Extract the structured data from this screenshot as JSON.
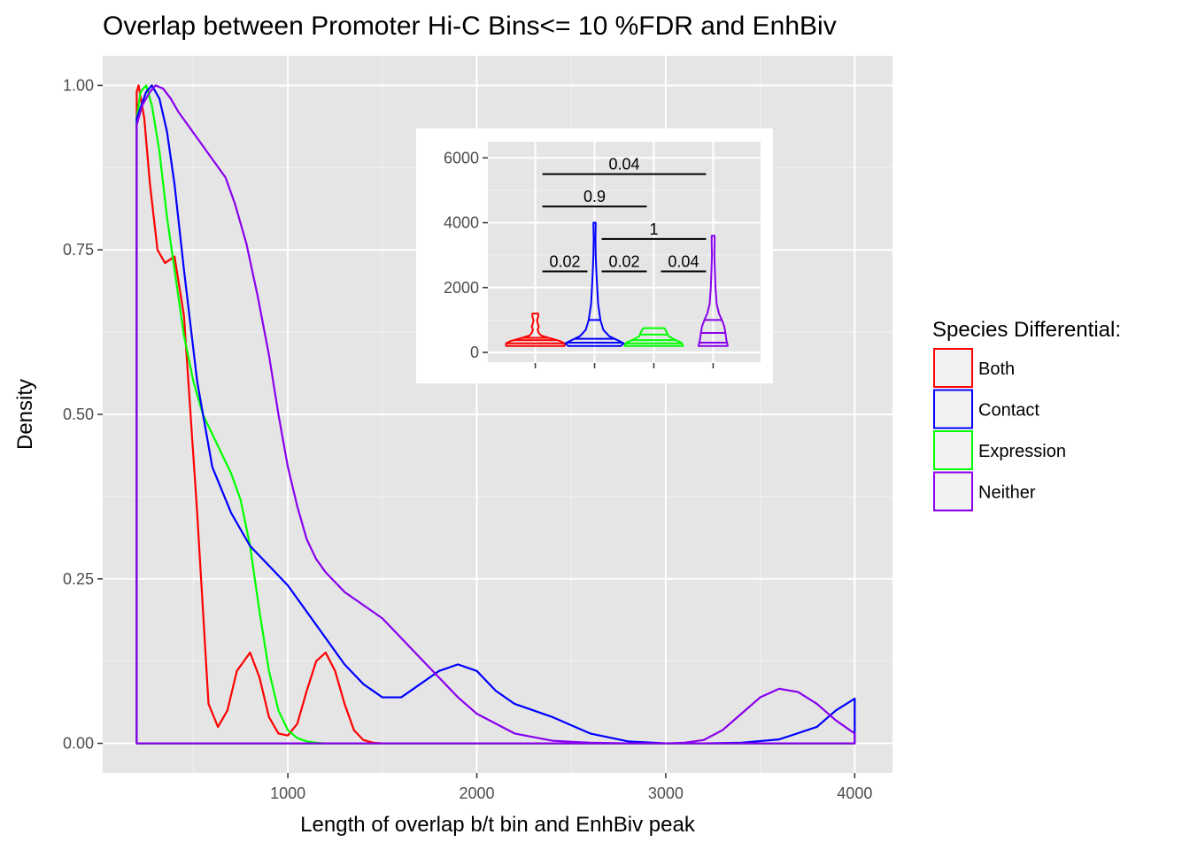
{
  "chart_data": [
    {
      "type": "line",
      "subtype": "density",
      "title": "Overlap between Promoter Hi-C Bins<= 10 %FDR and EnhBiv",
      "xlabel": "Length of overlap b/t bin and EnhBiv peak",
      "ylabel": "Density",
      "xlim": [
        20,
        4200
      ],
      "ylim": [
        -0.045,
        1.045
      ],
      "xticks": [
        1000,
        2000,
        3000,
        4000
      ],
      "yticks": [
        0,
        0.25,
        0.5,
        0.75,
        1.0
      ],
      "yticklabels": [
        "0.00",
        "0.25",
        "0.50",
        "0.75",
        "1.00"
      ],
      "grid": true,
      "background": "#e5e5e5",
      "legend": {
        "title": "Species Differential:",
        "position": "right",
        "entries": [
          "Both",
          "Contact",
          "Expression",
          "Neither"
        ]
      },
      "series": [
        {
          "name": "Both",
          "color": "#ff0000",
          "x": [
            200,
            200,
            210,
            240,
            270,
            310,
            350,
            400,
            450,
            520,
            580,
            630,
            680,
            730,
            800,
            850,
            900,
            950,
            1000,
            1050,
            1100,
            1150,
            1200,
            1250,
            1300,
            1350,
            1400,
            1450,
            1500,
            4000
          ],
          "y": [
            0,
            0.99,
            1.0,
            0.95,
            0.85,
            0.75,
            0.73,
            0.74,
            0.65,
            0.35,
            0.06,
            0.025,
            0.05,
            0.11,
            0.138,
            0.1,
            0.04,
            0.015,
            0.012,
            0.03,
            0.08,
            0.125,
            0.138,
            0.11,
            0.06,
            0.02,
            0.005,
            0.001,
            0,
            0
          ]
        },
        {
          "name": "Contact",
          "color": "#0000ff",
          "x": [
            200,
            200,
            250,
            280,
            320,
            360,
            400,
            450,
            520,
            600,
            700,
            800,
            900,
            1000,
            1100,
            1200,
            1300,
            1400,
            1500,
            1600,
            1700,
            1800,
            1900,
            2000,
            2100,
            2200,
            2400,
            2600,
            2800,
            3000,
            3200,
            3400,
            3600,
            3800,
            3900,
            4000,
            4000
          ],
          "y": [
            0,
            0.95,
            0.99,
            1.0,
            0.98,
            0.93,
            0.85,
            0.72,
            0.55,
            0.42,
            0.35,
            0.3,
            0.27,
            0.24,
            0.2,
            0.16,
            0.12,
            0.09,
            0.07,
            0.07,
            0.09,
            0.11,
            0.12,
            0.11,
            0.08,
            0.06,
            0.04,
            0.015,
            0.003,
            0,
            0,
            0.001,
            0.006,
            0.025,
            0.05,
            0.068,
            0
          ]
        },
        {
          "name": "Expression",
          "color": "#00ff00",
          "x": [
            200,
            220,
            250,
            280,
            320,
            360,
            400,
            450,
            500,
            550,
            600,
            650,
            700,
            750,
            800,
            850,
            900,
            950,
            1000,
            1050,
            1100,
            1150,
            1200,
            1300,
            4000
          ],
          "y": [
            0.95,
            0.99,
            1.0,
            0.97,
            0.9,
            0.8,
            0.72,
            0.62,
            0.55,
            0.5,
            0.47,
            0.44,
            0.41,
            0.37,
            0.3,
            0.2,
            0.11,
            0.05,
            0.02,
            0.008,
            0.003,
            0.001,
            0,
            0,
            0
          ]
        },
        {
          "name": "Neither",
          "color": "#8800ee",
          "x": [
            200,
            200,
            230,
            270,
            300,
            340,
            380,
            420,
            470,
            520,
            570,
            620,
            670,
            720,
            780,
            840,
            900,
            950,
            1000,
            1050,
            1100,
            1150,
            1200,
            1300,
            1400,
            1500,
            1600,
            1700,
            1800,
            1900,
            2000,
            2200,
            2400,
            2600,
            2800,
            3000,
            3100,
            3200,
            3300,
            3400,
            3500,
            3600,
            3700,
            3800,
            3900,
            4000,
            4000
          ],
          "y": [
            0,
            0.94,
            0.97,
            0.99,
            1.0,
            0.995,
            0.98,
            0.96,
            0.94,
            0.92,
            0.9,
            0.88,
            0.86,
            0.82,
            0.76,
            0.68,
            0.59,
            0.5,
            0.42,
            0.36,
            0.31,
            0.28,
            0.26,
            0.23,
            0.21,
            0.19,
            0.16,
            0.13,
            0.1,
            0.07,
            0.045,
            0.015,
            0.004,
            0.001,
            0,
            0,
            0.001,
            0.005,
            0.02,
            0.045,
            0.07,
            0.083,
            0.078,
            0.06,
            0.035,
            0.015,
            0
          ]
        }
      ]
    },
    {
      "type": "violin",
      "yticks": [
        0,
        2000,
        4000,
        6000
      ],
      "ylim": [
        -300,
        6500
      ],
      "grid": true,
      "background": "#e5e5e5",
      "groups": [
        {
          "name": "Both",
          "color": "#ff0000",
          "max": 1200,
          "quantiles": [
            280,
            380,
            450
          ]
        },
        {
          "name": "Contact",
          "color": "#0000ff",
          "max": 4000,
          "quantiles": [
            300,
            420,
            1000
          ]
        },
        {
          "name": "Expression",
          "color": "#00ff00",
          "max": 750,
          "quantiles": [
            280,
            380,
            550
          ]
        },
        {
          "name": "Neither",
          "color": "#8800ee",
          "max": 3600,
          "quantiles": [
            300,
            600,
            1000
          ]
        }
      ],
      "comparisons": [
        {
          "groups": [
            "Both",
            "Contact"
          ],
          "p": "0.02",
          "y": 2500
        },
        {
          "groups": [
            "Contact",
            "Expression"
          ],
          "p": "0.02",
          "y": 2500
        },
        {
          "groups": [
            "Expression",
            "Neither"
          ],
          "p": "0.04",
          "y": 2500
        },
        {
          "groups": [
            "Contact",
            "Neither"
          ],
          "p": "1",
          "y": 3500
        },
        {
          "groups": [
            "Both",
            "Expression"
          ],
          "p": "0.9",
          "y": 4500
        },
        {
          "groups": [
            "Both",
            "Neither"
          ],
          "p": "0.04",
          "y": 5500
        }
      ]
    }
  ]
}
